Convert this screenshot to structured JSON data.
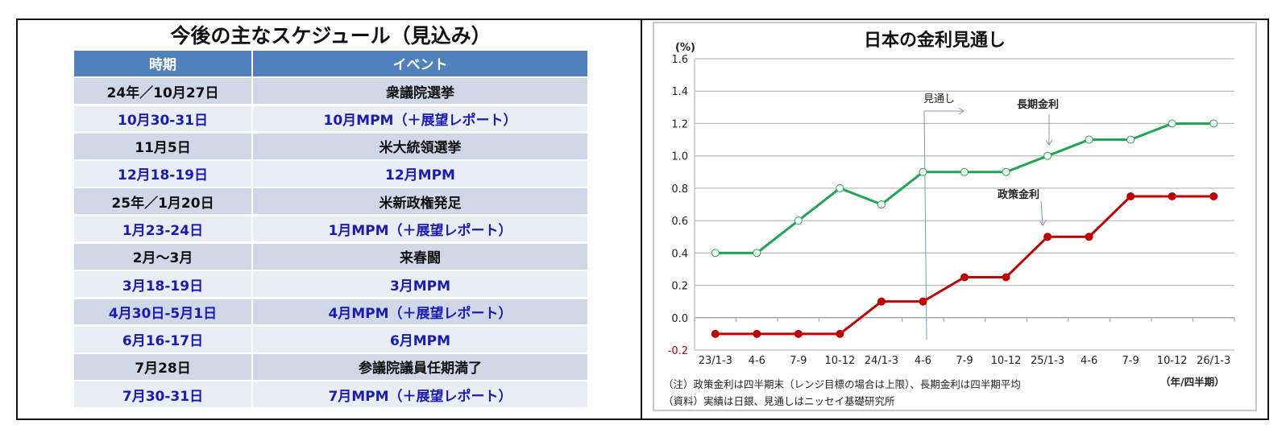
{
  "schedule": {
    "title": "今後の主なスケジュール（見込み）",
    "columns": [
      "時期",
      "イベント"
    ],
    "rows": [
      {
        "date": "24年／10月27日",
        "event": "衆議院選挙",
        "color": "black"
      },
      {
        "date": "10月30-31日",
        "event": "10月MPM（＋展望レポート）",
        "color": "blue"
      },
      {
        "date": "11月5日",
        "event": "米大統領選挙",
        "color": "black"
      },
      {
        "date": "12月18-19日",
        "event": "12月MPM",
        "color": "blue"
      },
      {
        "date": "25年／1月20日",
        "event": "米新政権発足",
        "color": "black"
      },
      {
        "date": "1月23-24日",
        "event": "1月MPM（＋展望レポート）",
        "color": "blue"
      },
      {
        "date": "2月～3月",
        "event": "来春闘",
        "color": "black"
      },
      {
        "date": "3月18-19日",
        "event": "3月MPM",
        "color": "blue"
      },
      {
        "date": "4月30日-5月1日",
        "event": "4月MPM（＋展望レポート）",
        "color": "blue"
      },
      {
        "date": "6月16-17日",
        "event": "6月MPM",
        "color": "blue"
      },
      {
        "date": "7月28日",
        "event": "参議院議員任期満了",
        "color": "black"
      },
      {
        "date": "7月30-31日",
        "event": "7月MPM（＋展望レポート）",
        "color": "blue"
      }
    ],
    "colors": {
      "header_bg": "#4F81BD",
      "odd_bg": "#D0D8E8",
      "even_bg": "#E9EDF4",
      "blue_text": "#1a1ab8"
    }
  },
  "chart": {
    "title": "日本の金利見通し",
    "unit_label": "(%)",
    "xunit_label": "（年/四半期）",
    "forecast_label": "見通し",
    "long_rate_label": "長期金利",
    "policy_rate_label": "政策金利",
    "note": "（注）政策金利は四半期末（レンジ目標の場合は上限）、長期金利は四半期平均",
    "source": "（資料）実績は日銀、見通しはニッセイ基礎研究所"
  },
  "chart_data": {
    "type": "line",
    "title": "日本の金利見通し",
    "xlabel": "（年/四半期）",
    "ylabel": "(%)",
    "categories": [
      "23/1-3",
      "4-6",
      "7-9",
      "10-12",
      "24/1-3",
      "4-6",
      "7-9",
      "10-12",
      "25/1-3",
      "4-6",
      "7-9",
      "10-12",
      "26/1-3"
    ],
    "series": [
      {
        "name": "長期金利",
        "color": "#1FA652",
        "marker": "open-circle",
        "values": [
          0.4,
          0.4,
          0.6,
          0.8,
          0.7,
          0.9,
          0.9,
          0.9,
          1.0,
          1.1,
          1.1,
          1.2,
          1.2
        ]
      },
      {
        "name": "政策金利",
        "color": "#C00000",
        "marker": "filled-circle",
        "values": [
          -0.1,
          -0.1,
          -0.1,
          -0.1,
          0.1,
          0.1,
          0.25,
          0.25,
          0.5,
          0.5,
          0.75,
          0.75,
          0.75
        ]
      }
    ],
    "yticks": [
      "1.6",
      "1.4",
      "1.2",
      "1.0",
      "0.8",
      "0.6",
      "0.4",
      "0.2",
      "0.0",
      "-0.2"
    ],
    "ylim": [
      -0.2,
      1.6
    ],
    "grid": true,
    "forecast_start_between": [
      "4-6",
      "7-9"
    ],
    "annotations": [
      "見通し",
      "長期金利",
      "政策金利"
    ],
    "notes": [
      "（注）政策金利は四半期末（レンジ目標の場合は上限）、長期金利は四半期平均",
      "（資料）実績は日銀、見通しはニッセイ基礎研究所"
    ]
  }
}
